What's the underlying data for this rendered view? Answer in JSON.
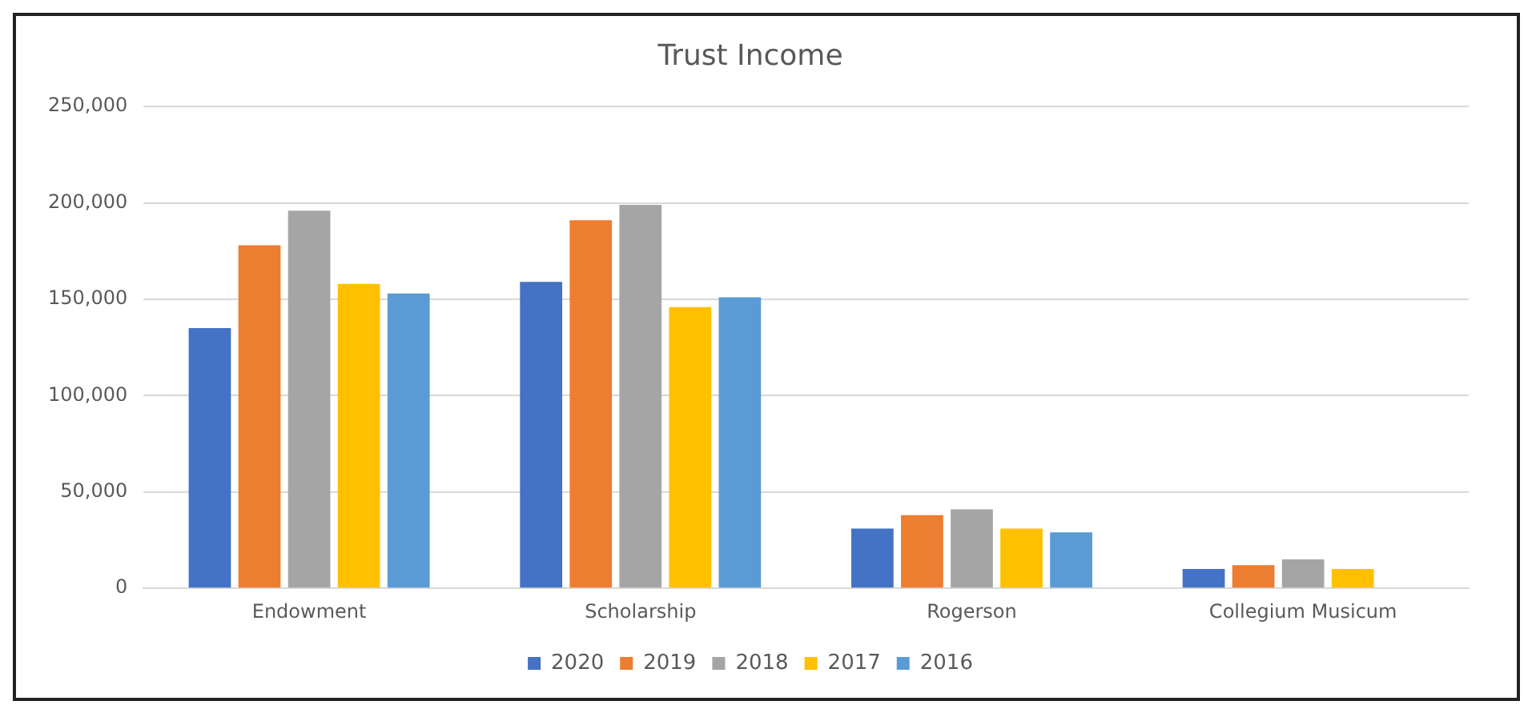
{
  "chart_data": {
    "type": "bar",
    "title": "Trust Income",
    "categories": [
      "Endowment",
      "Scholarship",
      "Rogerson",
      "Collegium Musicum"
    ],
    "series": [
      {
        "name": "2020",
        "color": "#4472c4",
        "values": [
          135000,
          159000,
          31000,
          10000
        ]
      },
      {
        "name": "2019",
        "color": "#ed7d31",
        "values": [
          178000,
          191000,
          38000,
          12000
        ]
      },
      {
        "name": "2018",
        "color": "#a5a5a5",
        "values": [
          196000,
          199000,
          41000,
          15000
        ]
      },
      {
        "name": "2017",
        "color": "#ffc000",
        "values": [
          158000,
          146000,
          31000,
          10000
        ]
      },
      {
        "name": "2016",
        "color": "#5b9bd5",
        "values": [
          153000,
          151000,
          29000,
          null
        ]
      }
    ],
    "ylim": [
      0,
      250000
    ],
    "yticks": [
      0,
      {
        "value": 50000,
        "label": "50,000"
      },
      {
        "value": 100000,
        "label": "100,000"
      },
      {
        "value": 150000,
        "label": "150,000"
      },
      {
        "value": 200000,
        "label": "200,000"
      },
      {
        "value": 250000,
        "label": "250,000"
      }
    ],
    "grid": "y",
    "legend": "bottom"
  }
}
